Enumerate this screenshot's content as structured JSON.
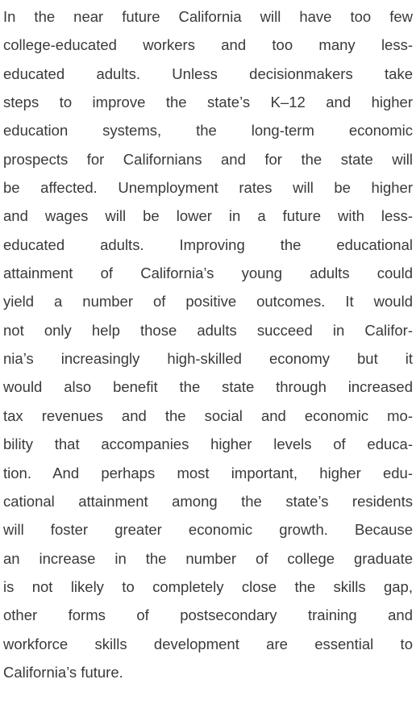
{
  "paragraph": {
    "lines": [
      "In the near future California will have too few",
      "college-educated workers and too many less-",
      "educated adults. Unless decisionmakers take",
      "steps to improve the state’s K–12 and higher",
      "education systems, the long-term economic",
      "prospects for Californians and for the state will",
      "be affected. Unemployment rates will be higher",
      "and wages will be lower in a future with less-",
      "educated adults. Improving the educational",
      "attainment of California’s young adults could",
      "yield a number of positive outcomes. It would",
      "not only help those adults succeed in Califor-",
      "nia’s increasingly high-skilled economy but it",
      "would also benefit the state through increased",
      "tax revenues and the social and economic mo-",
      "bility that accompanies higher levels of educa-",
      "tion. And perhaps most important, higher edu-",
      "cational attainment among the state’s residents",
      "will foster greater economic growth. Because",
      "an increase in the number of college graduate",
      "is not likely to completely close the skills gap,",
      "other forms of postsecondary training and",
      "workforce skills development are essential to",
      "California’s future."
    ]
  }
}
